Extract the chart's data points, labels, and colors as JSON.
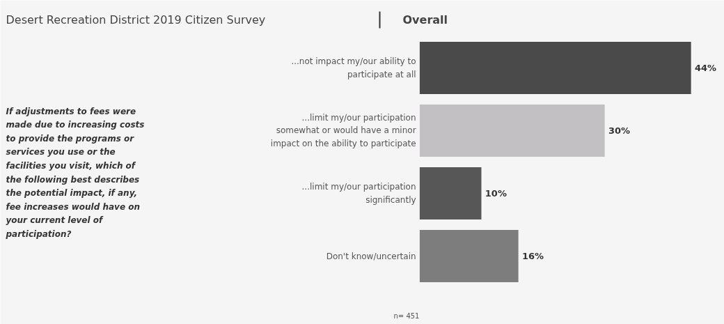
{
  "chart_data": {
    "type": "bar",
    "orientation": "horizontal",
    "title": "Desert Recreation District 2019 Citizen Survey",
    "subtitle": "Overall",
    "categories": [
      "...not impact my/our ability to participate at all",
      "...limit my/our participation somewhat or would have a minor impact on the ability to participate",
      "...limit my/our participation significantly",
      "Don't know/uncertain"
    ],
    "values": [
      44,
      30,
      10,
      16
    ],
    "colors": [
      "#4a4a4a",
      "#c2c0c2",
      "#575757",
      "#7d7d7d"
    ],
    "value_labels": [
      "44%",
      "30%",
      "10%",
      "16%"
    ],
    "annotations": [
      "If adjustments to fees were made due to increasing costs to provide the programs or services you use or the facilities you visit, which of the following best describes the potential impact, if any, fee increases would have on your current level of participation?",
      "n= 451"
    ]
  }
}
